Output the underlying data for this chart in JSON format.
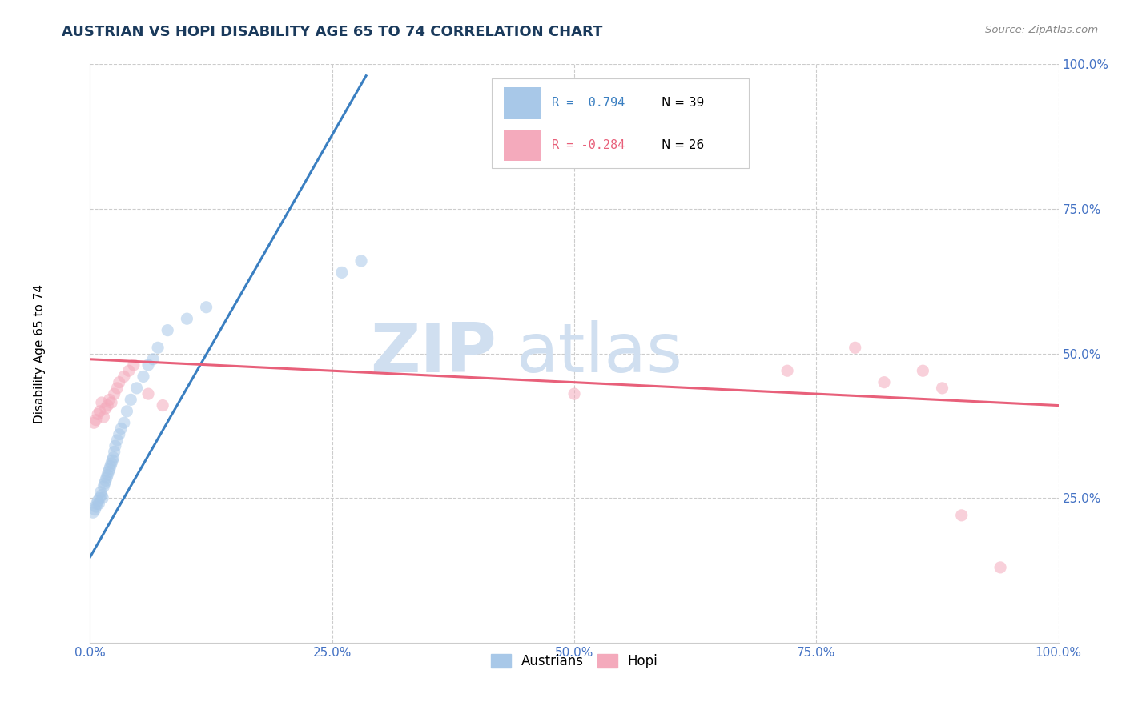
{
  "title": "AUSTRIAN VS HOPI DISABILITY AGE 65 TO 74 CORRELATION CHART",
  "source": "Source: ZipAtlas.com",
  "ylabel": "Disability Age 65 to 74",
  "xlim": [
    0,
    1.0
  ],
  "ylim": [
    0,
    1.0
  ],
  "xticks": [
    0.0,
    0.25,
    0.5,
    0.75,
    1.0
  ],
  "xtick_labels": [
    "0.0%",
    "25.0%",
    "50.0%",
    "75.0%",
    "100.0%"
  ],
  "yticks": [
    0.25,
    0.5,
    0.75,
    1.0
  ],
  "ytick_labels": [
    "25.0%",
    "50.0%",
    "75.0%",
    "100.0%"
  ],
  "legend_R_blue": "R =  0.794",
  "legend_N_blue": "N = 39",
  "legend_R_pink": "R = -0.284",
  "legend_N_pink": "N = 26",
  "blue_dot_color": "#a8c8e8",
  "pink_dot_color": "#f4aabc",
  "blue_line_color": "#3a7fc1",
  "pink_line_color": "#e8607a",
  "title_color": "#1a3a5c",
  "source_color": "#888888",
  "watermark_color": "#d0dff0",
  "grid_color": "#cccccc",
  "tick_color": "#4472c4",
  "austrians_x": [
    0.003,
    0.005,
    0.006,
    0.007,
    0.008,
    0.009,
    0.01,
    0.011,
    0.012,
    0.013,
    0.014,
    0.015,
    0.016,
    0.017,
    0.018,
    0.019,
    0.02,
    0.021,
    0.022,
    0.023,
    0.024,
    0.025,
    0.026,
    0.028,
    0.03,
    0.032,
    0.035,
    0.038,
    0.042,
    0.048,
    0.055,
    0.06,
    0.065,
    0.07,
    0.08,
    0.1,
    0.12,
    0.26,
    0.28
  ],
  "austrians_y": [
    0.225,
    0.23,
    0.235,
    0.24,
    0.245,
    0.24,
    0.25,
    0.26,
    0.255,
    0.25,
    0.27,
    0.275,
    0.28,
    0.285,
    0.29,
    0.295,
    0.3,
    0.305,
    0.31,
    0.315,
    0.32,
    0.33,
    0.34,
    0.35,
    0.36,
    0.37,
    0.38,
    0.4,
    0.42,
    0.44,
    0.46,
    0.48,
    0.49,
    0.51,
    0.54,
    0.56,
    0.58,
    0.64,
    0.66
  ],
  "hopi_x": [
    0.004,
    0.006,
    0.008,
    0.01,
    0.012,
    0.014,
    0.016,
    0.018,
    0.02,
    0.022,
    0.025,
    0.028,
    0.03,
    0.035,
    0.04,
    0.045,
    0.06,
    0.075,
    0.5,
    0.72,
    0.79,
    0.82,
    0.86,
    0.88,
    0.9,
    0.94
  ],
  "hopi_y": [
    0.38,
    0.385,
    0.395,
    0.4,
    0.415,
    0.39,
    0.405,
    0.41,
    0.42,
    0.415,
    0.43,
    0.44,
    0.45,
    0.46,
    0.47,
    0.48,
    0.43,
    0.41,
    0.43,
    0.47,
    0.51,
    0.45,
    0.47,
    0.44,
    0.22,
    0.13
  ],
  "blue_trendline_x": [
    0.0,
    0.285
  ],
  "blue_trendline_y": [
    0.148,
    0.98
  ],
  "pink_trendline_x": [
    0.0,
    1.0
  ],
  "pink_trendline_y": [
    0.49,
    0.41
  ],
  "marker_size": 120,
  "marker_alpha": 0.55,
  "figsize": [
    14.06,
    8.92
  ],
  "dpi": 100
}
